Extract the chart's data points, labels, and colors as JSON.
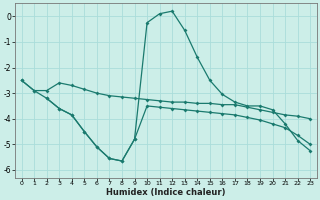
{
  "xlabel": "Humidex (Indice chaleur)",
  "bg_color": "#cceee8",
  "line_color": "#1a7a6e",
  "grid_color": "#aaddda",
  "xlim": [
    -0.5,
    23.5
  ],
  "ylim": [
    -6.3,
    0.5
  ],
  "xticks": [
    0,
    1,
    2,
    3,
    4,
    5,
    6,
    7,
    8,
    9,
    10,
    11,
    12,
    13,
    14,
    15,
    16,
    17,
    18,
    19,
    20,
    21,
    22,
    23
  ],
  "yticks": [
    0,
    -1,
    -2,
    -3,
    -4,
    -5,
    -6
  ],
  "curve1_x": [
    0,
    1,
    2,
    3,
    4,
    5,
    6,
    7,
    8,
    9,
    10,
    11,
    12,
    13,
    14,
    15,
    16,
    17,
    18,
    19,
    20,
    21,
    22,
    23
  ],
  "curve1_y": [
    -2.5,
    -2.9,
    -2.9,
    -2.6,
    -2.7,
    -2.85,
    -3.0,
    -3.1,
    -3.15,
    -3.2,
    -3.25,
    -3.3,
    -3.35,
    -3.35,
    -3.4,
    -3.4,
    -3.45,
    -3.45,
    -3.55,
    -3.65,
    -3.75,
    -3.85,
    -3.9,
    -4.0
  ],
  "curve2_x": [
    0,
    1,
    2,
    3,
    4,
    5,
    6,
    7,
    8,
    9,
    10,
    11,
    12,
    13,
    14,
    15,
    16,
    17,
    18,
    19,
    20,
    21,
    22,
    23
  ],
  "curve2_y": [
    -2.5,
    -2.9,
    -3.2,
    -3.6,
    -3.85,
    -4.5,
    -5.1,
    -5.55,
    -5.65,
    -4.8,
    -0.25,
    0.1,
    0.2,
    -0.55,
    -1.6,
    -2.5,
    -3.05,
    -3.35,
    -3.5,
    -3.5,
    -3.65,
    -4.2,
    -4.85,
    -5.25
  ],
  "curve3_x": [
    2,
    3,
    4,
    5,
    6,
    7,
    8,
    9,
    10,
    11,
    12,
    13,
    14,
    15,
    16,
    17,
    18,
    19,
    20,
    21,
    22,
    23
  ],
  "curve3_y": [
    -3.2,
    -3.6,
    -3.85,
    -4.5,
    -5.1,
    -5.55,
    -5.65,
    -4.8,
    -3.5,
    -3.55,
    -3.6,
    -3.65,
    -3.7,
    -3.75,
    -3.8,
    -3.85,
    -3.95,
    -4.05,
    -4.2,
    -4.35,
    -4.65,
    -5.0
  ]
}
